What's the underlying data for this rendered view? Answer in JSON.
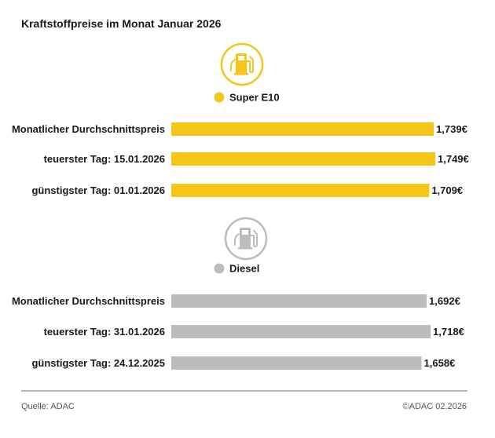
{
  "title": "Kraftstoffpreise im Monat Januar 2026",
  "colors": {
    "super": "#f5c518",
    "diesel": "#bcbcbc",
    "text": "#1a1a1a"
  },
  "chart_data": {
    "type": "bar",
    "orientation": "horizontal",
    "groups": [
      {
        "name": "Super E10",
        "icon": "fuel-pump-icon",
        "color": "#f5c518",
        "categories": [
          "Monatlicher Durchschnittspreis",
          "teuerster Tag: 15.01.2026",
          "günstigster Tag: 01.01.2026"
        ],
        "values": [
          1.739,
          1.749,
          1.709
        ],
        "value_labels": [
          "1,739€",
          "1,749€",
          "1,709€"
        ]
      },
      {
        "name": "Diesel",
        "icon": "fuel-pump-icon",
        "color": "#bcbcbc",
        "categories": [
          "Monatlicher Durchschnittspreis",
          "teuerster Tag: 31.01.2026",
          "günstigster Tag: 24.12.2025"
        ],
        "values": [
          1.692,
          1.718,
          1.658
        ],
        "value_labels": [
          "1,692€",
          "1,718€",
          "1,658€"
        ]
      }
    ],
    "axis_visible": false
  },
  "footer": {
    "source": "Quelle: ADAC",
    "copyright": "©ADAC 02.2026"
  }
}
